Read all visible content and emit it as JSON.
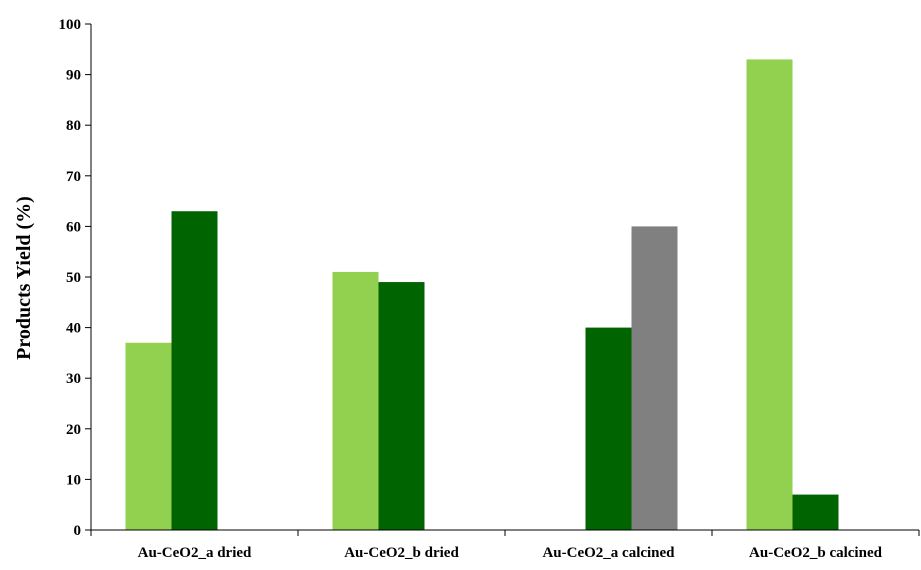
{
  "chart_data": {
    "type": "bar",
    "title": "",
    "xlabel": "",
    "ylabel": "Products Yield (%)",
    "ylim": [
      0,
      100
    ],
    "yticks": [
      "0",
      "10",
      "20",
      "30",
      "40",
      "50",
      "60",
      "70",
      "80",
      "90",
      "100"
    ],
    "grid": false,
    "legend": "none",
    "categories": [
      "Au-CeO2_a dried",
      "Au-CeO2_b dried",
      "Au-CeO2_a calcined",
      "Au-CeO2_b calcined"
    ],
    "series": [
      {
        "color": "#92d050",
        "values": [
          37,
          51,
          0,
          93
        ]
      },
      {
        "color": "#006400",
        "values": [
          63,
          49,
          40,
          7
        ]
      },
      {
        "color": "#808080",
        "values": [
          0,
          0,
          60,
          0
        ]
      }
    ]
  }
}
